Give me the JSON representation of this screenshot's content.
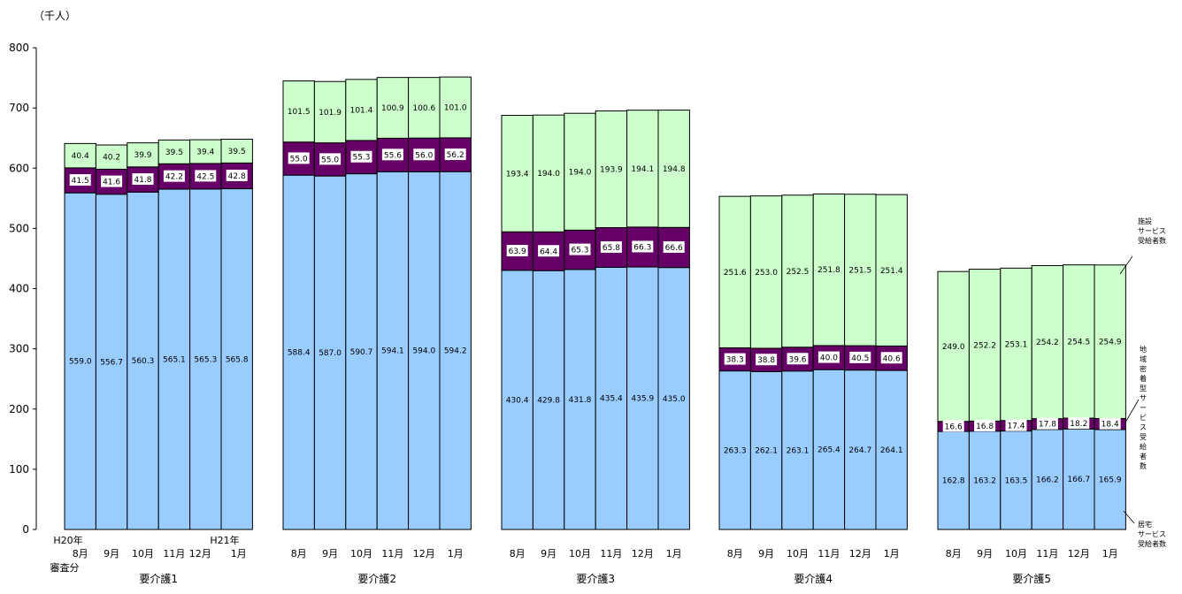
{
  "chart_data": {
    "type": "bar",
    "stacked": true,
    "unit_label": "（千人）",
    "ylim": [
      0,
      800
    ],
    "yticks": [
      0,
      100,
      200,
      300,
      400,
      500,
      600,
      700,
      800
    ],
    "grid": false,
    "colors": {
      "home": "#99ccff",
      "community": "#660066",
      "facility": "#ccffcc"
    },
    "groups": [
      {
        "name": "要介護1",
        "months": [
          "8月",
          "9月",
          "10月",
          "11月",
          "12月",
          "1月"
        ],
        "home": [
          559.0,
          556.7,
          560.3,
          565.1,
          565.3,
          565.8
        ],
        "community": [
          41.5,
          41.6,
          41.8,
          42.2,
          42.5,
          42.8
        ],
        "facility": [
          40.4,
          40.2,
          39.9,
          39.5,
          39.4,
          39.5
        ],
        "year_label_start": "H20年",
        "year_label_end": "H21年",
        "note": "審査分"
      },
      {
        "name": "要介護2",
        "months": [
          "8月",
          "9月",
          "10月",
          "11月",
          "12月",
          "1月"
        ],
        "home": [
          588.4,
          587.0,
          590.7,
          594.1,
          594.0,
          594.2
        ],
        "community": [
          55.0,
          55.0,
          55.3,
          55.6,
          56.0,
          56.2
        ],
        "facility": [
          101.5,
          101.9,
          101.4,
          100.9,
          100.6,
          101.0
        ]
      },
      {
        "name": "要介護3",
        "months": [
          "8月",
          "9月",
          "10月",
          "11月",
          "12月",
          "1月"
        ],
        "home": [
          430.4,
          429.8,
          431.8,
          435.4,
          435.9,
          435.0
        ],
        "community": [
          63.9,
          64.4,
          65.3,
          65.8,
          66.3,
          66.6
        ],
        "facility": [
          193.4,
          194.0,
          194.0,
          193.9,
          194.1,
          194.8
        ]
      },
      {
        "name": "要介護4",
        "months": [
          "8月",
          "9月",
          "10月",
          "11月",
          "12月",
          "1月"
        ],
        "home": [
          263.3,
          262.1,
          263.1,
          265.4,
          264.7,
          264.1
        ],
        "community": [
          38.3,
          38.8,
          39.6,
          40.0,
          40.5,
          40.6
        ],
        "facility": [
          251.6,
          253.0,
          252.5,
          251.8,
          251.5,
          251.4
        ]
      },
      {
        "name": "要介護5",
        "months": [
          "8月",
          "9月",
          "10月",
          "11月",
          "12月",
          "1月"
        ],
        "home": [
          162.8,
          163.2,
          163.5,
          166.2,
          166.7,
          165.9
        ],
        "community": [
          16.6,
          16.8,
          17.4,
          17.8,
          18.2,
          18.4
        ],
        "facility": [
          249.0,
          252.2,
          253.1,
          254.2,
          254.5,
          254.9
        ]
      }
    ],
    "legend": {
      "facility": [
        "施設",
        "サービス",
        "受給者数"
      ],
      "community": [
        "地域密着型サービス受給者数"
      ],
      "home": [
        "居宅",
        "サービス",
        "受給者数"
      ]
    }
  }
}
